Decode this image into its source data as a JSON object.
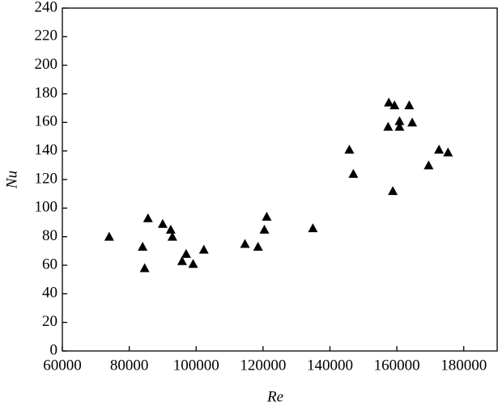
{
  "chart_data": {
    "type": "scatter",
    "x_label": "Re",
    "y_label": "Nu",
    "color": "#000000",
    "x": [
      74000,
      84000,
      84600,
      85600,
      90000,
      92400,
      92900,
      95800,
      97000,
      99100,
      102300,
      114600,
      118500,
      120400,
      121100,
      134900,
      145800,
      147000,
      157400,
      157600,
      159300,
      158800,
      160800,
      160800,
      163700,
      164600,
      169500,
      172600,
      175300
    ],
    "y": [
      80,
      73,
      58,
      93,
      89,
      85,
      80,
      63,
      68,
      61,
      71,
      75,
      73,
      85,
      94,
      86,
      141,
      124,
      157,
      174,
      172,
      112,
      161,
      157,
      172,
      160,
      130,
      141,
      139
    ],
    "xlim": [
      60000,
      190000
    ],
    "xticks": [
      60000,
      80000,
      100000,
      120000,
      140000,
      160000,
      180000
    ],
    "ylim": [
      0,
      240
    ],
    "yticks": [
      0,
      20,
      40,
      60,
      80,
      100,
      120,
      140,
      160,
      180,
      200,
      220,
      240
    ]
  }
}
